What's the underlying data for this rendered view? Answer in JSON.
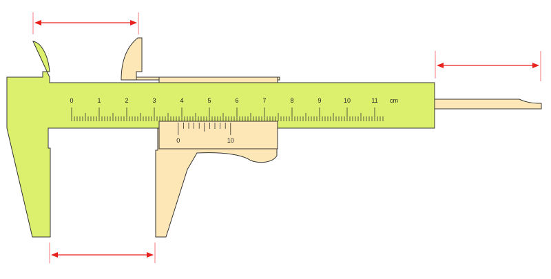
{
  "colors": {
    "main_body": "#dcf06e",
    "slider": "#fde7b6",
    "outline": "#333333",
    "dimension_arrow": "#e8211c",
    "guide_line": "#f07a7a"
  },
  "main_scale": {
    "labels": [
      "0",
      "1",
      "2",
      "3",
      "4",
      "5",
      "6",
      "7",
      "8",
      "9",
      "10",
      "11"
    ],
    "unit": "cm",
    "subdivisions_per_cm": 10,
    "length_mm": 113
  },
  "vernier_scale": {
    "labels": [
      "0",
      "10"
    ],
    "divisions": 10,
    "zero_reading_mm": 38.7
  },
  "dimensions": [
    {
      "name": "outside-jaw-measurement"
    },
    {
      "name": "inside-jaw-measurement"
    },
    {
      "name": "depth-rod-measurement"
    }
  ]
}
